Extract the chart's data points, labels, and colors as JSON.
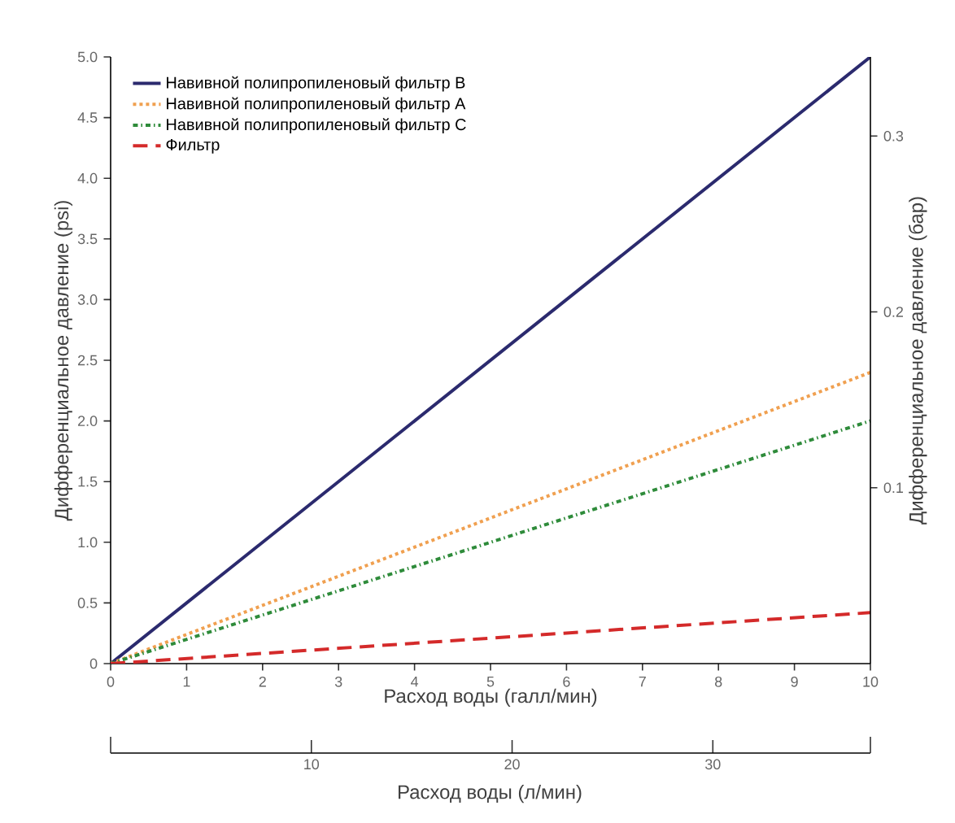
{
  "chart_data": {
    "type": "line",
    "xlabel": "Расход воды (галл/мин)",
    "ylabel": "Дифференциальное давление (psi)",
    "y2label": "Дифференциальное давление (бар)",
    "x2label": "Расход воды (л/мин)",
    "x": [
      0,
      10
    ],
    "series": [
      {
        "name": "Навивной полипропиленовый фильтр B",
        "color": "#2b2a6e",
        "line_style": "solid",
        "values": [
          0,
          5.0
        ]
      },
      {
        "name": "Навивной полипропиленовый фильтр A",
        "color": "#f0a050",
        "line_style": "dotted",
        "values": [
          0,
          2.4
        ]
      },
      {
        "name": "Навивной полипропиленовый фильтр C",
        "color": "#2e8b3a",
        "line_style": "dashdot",
        "values": [
          0,
          2.0
        ]
      },
      {
        "name": "Фильтр",
        "color": "#d42a2a",
        "line_style": "dashed",
        "values": [
          0,
          0.42
        ]
      }
    ],
    "xlim": [
      0,
      10
    ],
    "xticks": [
      0,
      1,
      2,
      3,
      4,
      5,
      6,
      7,
      8,
      9,
      10
    ],
    "ylim": [
      0,
      5
    ],
    "yticks": [
      0,
      {
        "value": 0.5,
        "label": "0.5"
      },
      {
        "value": 1,
        "label": "1.0"
      },
      {
        "value": 1.5,
        "label": "1.5"
      },
      {
        "value": 2,
        "label": "2.0"
      },
      {
        "value": 2.5,
        "label": "2.5"
      },
      {
        "value": 3,
        "label": "3.0"
      },
      {
        "value": 3.5,
        "label": "3.5"
      },
      {
        "value": 4,
        "label": "4.0"
      },
      {
        "value": 4.5,
        "label": "4.5"
      },
      {
        "value": 5,
        "label": "5.0"
      }
    ],
    "y2lim": [
      0,
      0.345
    ],
    "y2ticks": [
      0.1,
      0.2,
      0.3
    ],
    "x2lim": [
      0,
      37.85
    ],
    "x2ticks": [
      10,
      20,
      30
    ],
    "legend": "top left",
    "grid": false,
    "marker": "none"
  }
}
